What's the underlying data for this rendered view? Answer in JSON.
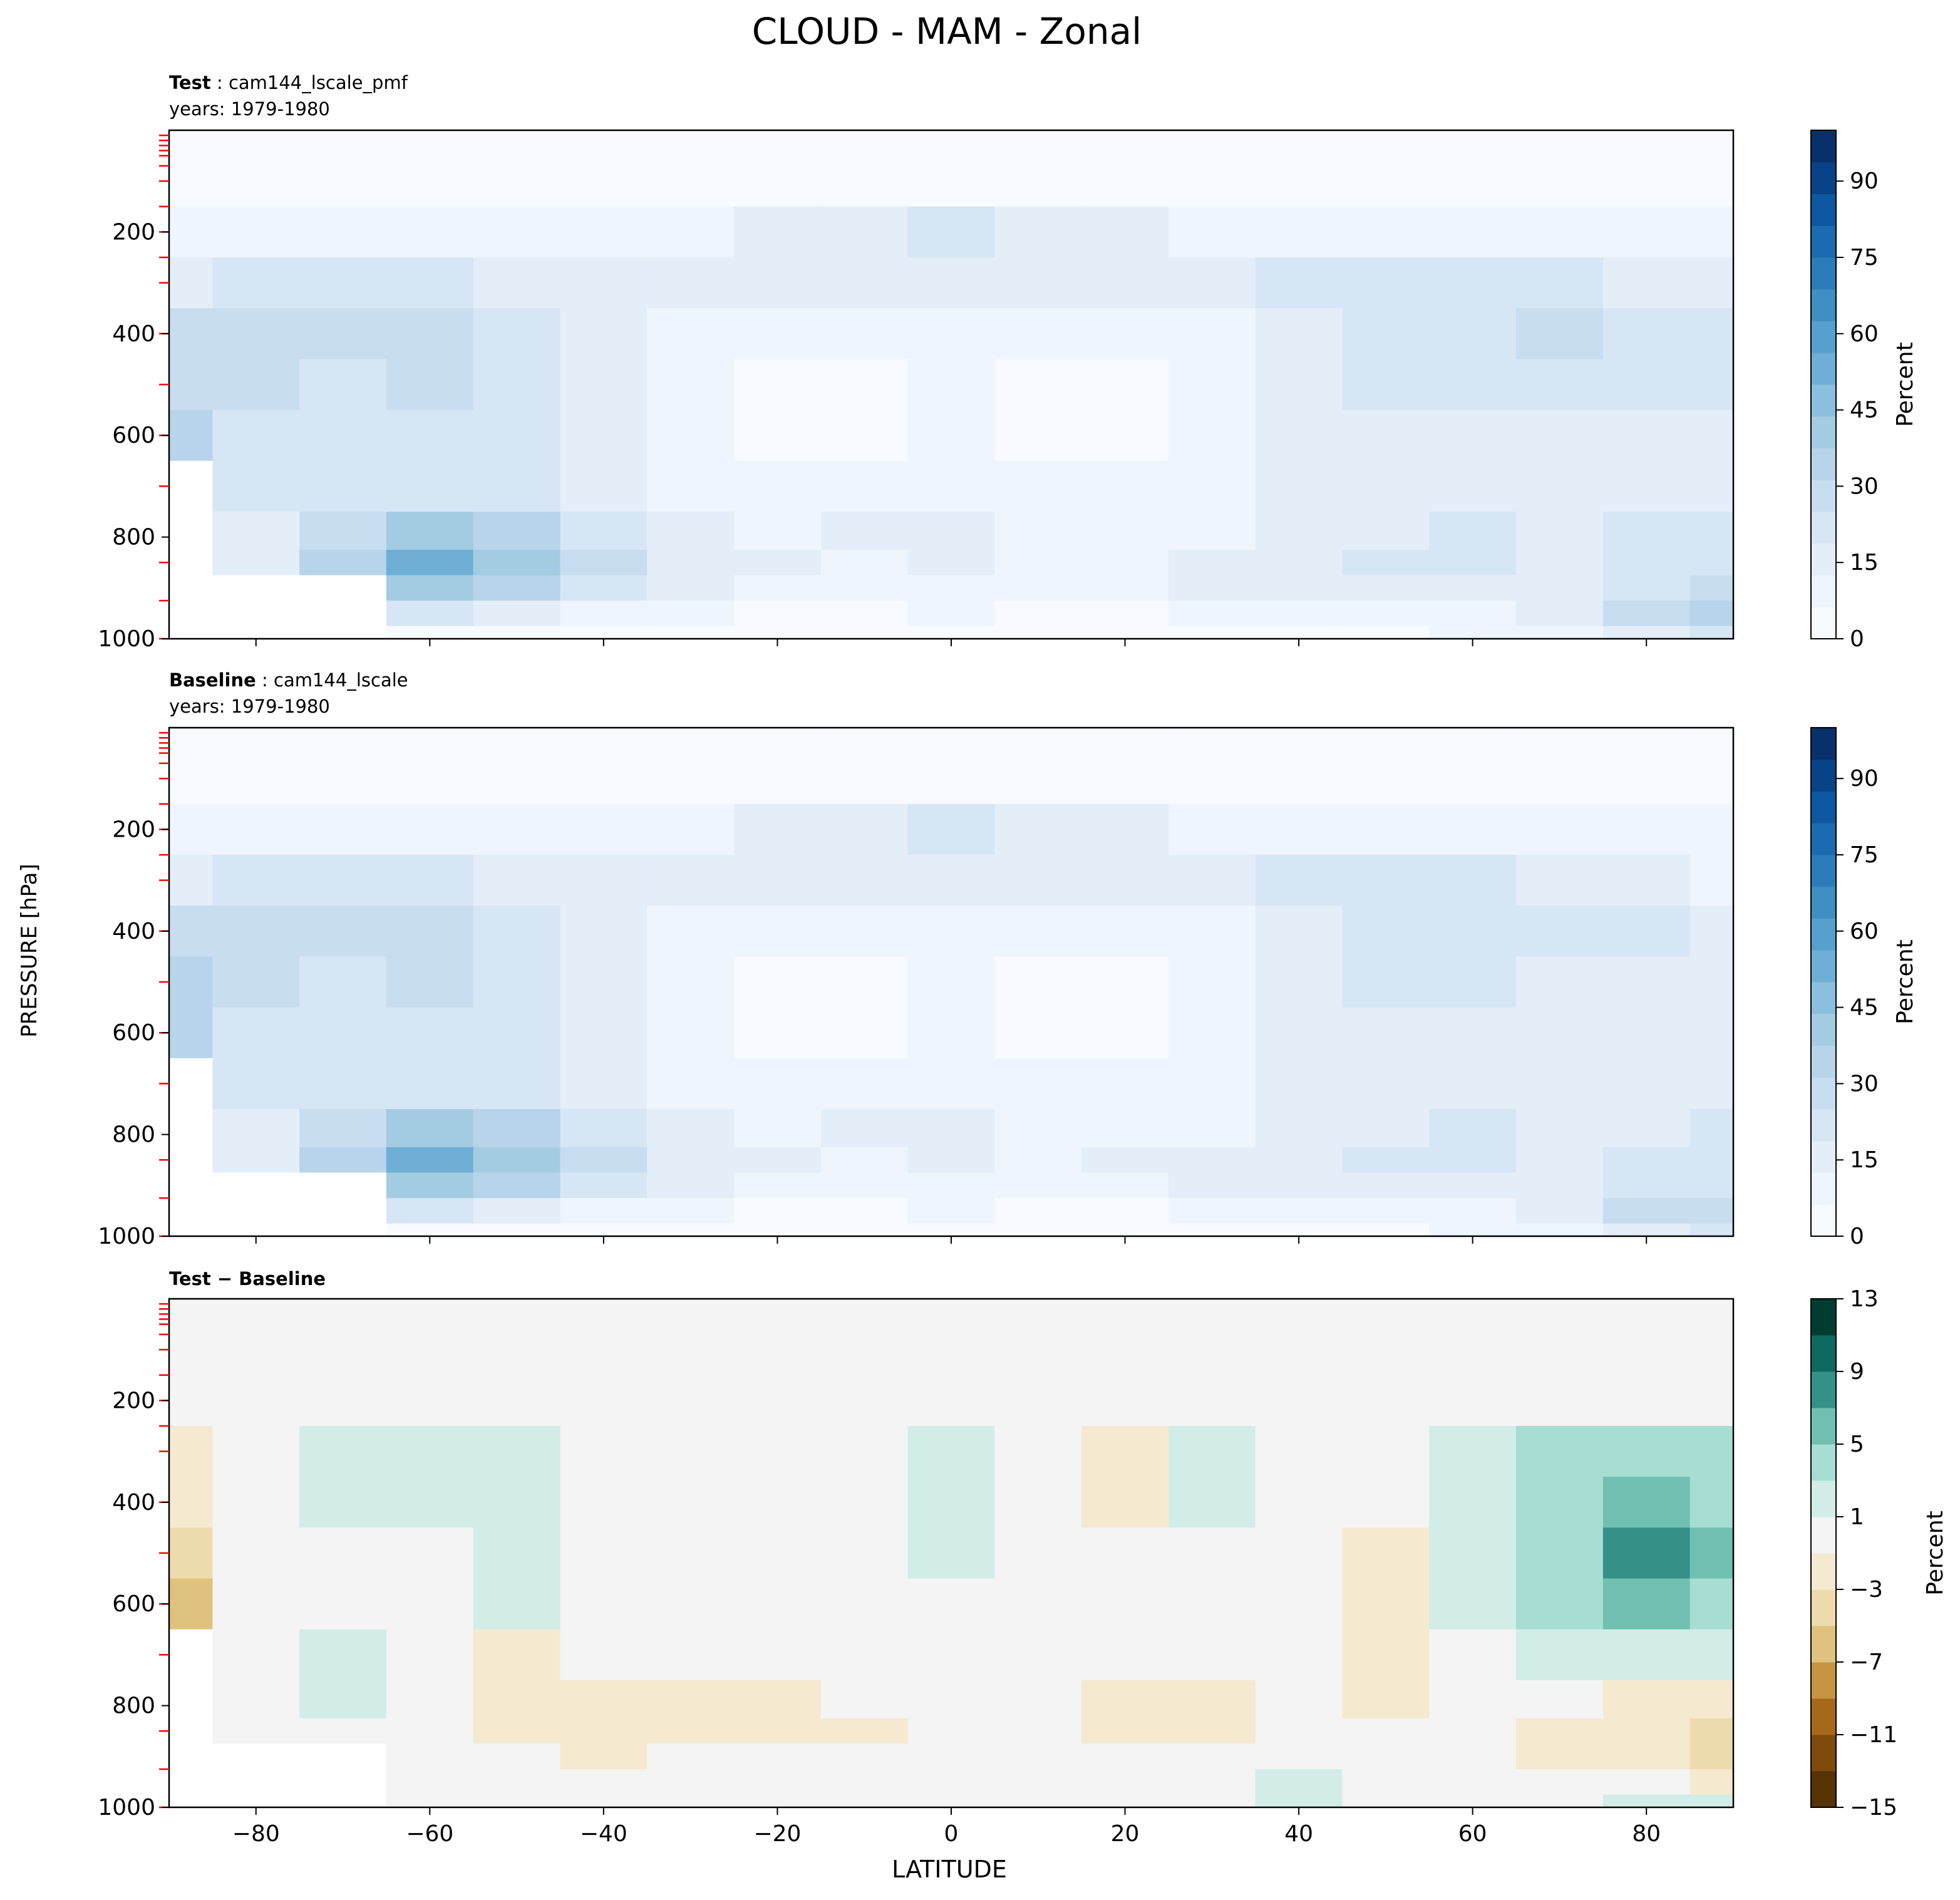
{
  "figure": {
    "title": "CLOUD - MAM - Zonal",
    "ylabel": "PRESSURE [hPa]",
    "xlabel": "LATITUDE"
  },
  "panels": [
    {
      "id": "test",
      "title_bold": "Test",
      "title_rest": " : cam144_lscale_pmf",
      "years": "years: 1979-1980",
      "colorbar_label": "Percent",
      "colorbar_ticks": [
        "0",
        "15",
        "30",
        "45",
        "60",
        "75",
        "90"
      ]
    },
    {
      "id": "baseline",
      "title_bold": "Baseline",
      "title_rest": " : cam144_lscale",
      "years": "years: 1979-1980",
      "colorbar_label": "Percent",
      "colorbar_ticks": [
        "0",
        "15",
        "30",
        "45",
        "60",
        "75",
        "90"
      ]
    },
    {
      "id": "diff",
      "title_bold": "Test − Baseline",
      "title_rest": "",
      "years": "",
      "colorbar_label": "Percent",
      "colorbar_ticks": [
        "−15",
        "−11",
        "−7",
        "−3",
        "1",
        "5",
        "9",
        "13"
      ]
    }
  ],
  "colors": {
    "blues": [
      "#f7fbff",
      "#eef5fc",
      "#e3eef9",
      "#d7e6f5",
      "#c8ddf0",
      "#b7d4ea",
      "#a3cce3",
      "#8abfdd",
      "#6fafd6",
      "#56a0ce",
      "#3f8fc5",
      "#2c7cba",
      "#1c6aaf",
      "#0d58a1",
      "#084287",
      "#08306b"
    ],
    "diff": [
      "#553305",
      "#7e4a0b",
      "#a6691c",
      "#c69544",
      "#dfc27d",
      "#eedbad",
      "#f5ead0",
      "#f4f4f4",
      "#d2ede8",
      "#a7ddd3",
      "#6fc0b1",
      "#359188",
      "#0e6a60",
      "#003c30"
    ],
    "missing": "#ffffff",
    "level_tick": "#ff0000"
  },
  "chart_data": [
    {
      "type": "heatmap",
      "title": "Test : cam144_lscale_pmf",
      "subtitle": "years: 1979-1980",
      "xlabel": "LATITUDE",
      "ylabel": "PRESSURE [hPa]",
      "x": [
        -90,
        -80,
        -70,
        -60,
        -50,
        -40,
        -30,
        -20,
        -10,
        0,
        10,
        20,
        30,
        40,
        50,
        60,
        70,
        80,
        90
      ],
      "y": [
        10,
        100,
        200,
        300,
        400,
        500,
        600,
        700,
        800,
        850,
        900,
        950,
        1000
      ],
      "xlim": [
        -90,
        90
      ],
      "ylim": [
        1000,
        0
      ],
      "xticks": [
        -80,
        -60,
        -40,
        -20,
        0,
        20,
        40,
        60,
        80
      ],
      "yticks": [
        200,
        400,
        600,
        800,
        1000
      ],
      "colorbar": {
        "label": "Percent",
        "range": [
          0,
          100
        ],
        "ticks": [
          0,
          15,
          30,
          45,
          60,
          75,
          90
        ]
      },
      "values": [
        [
          1,
          1,
          1,
          1,
          1,
          1,
          1,
          1,
          1,
          1,
          1,
          1,
          1,
          1,
          1,
          1,
          1,
          1,
          1
        ],
        [
          3,
          3,
          3,
          3,
          3,
          3,
          4,
          5,
          6,
          6,
          6,
          5,
          4,
          3,
          3,
          3,
          3,
          3,
          3
        ],
        [
          8,
          10,
          10,
          9,
          9,
          10,
          12,
          15,
          18,
          20,
          18,
          15,
          12,
          10,
          9,
          9,
          9,
          8,
          7
        ],
        [
          18,
          20,
          22,
          22,
          18,
          15,
          13,
          14,
          16,
          18,
          16,
          15,
          18,
          22,
          24,
          23,
          20,
          16,
          14
        ],
        [
          28,
          26,
          25,
          27,
          22,
          15,
          11,
          9,
          9,
          12,
          9,
          8,
          11,
          16,
          22,
          24,
          26,
          24,
          20
        ],
        [
          30,
          26,
          24,
          26,
          22,
          14,
          9,
          5,
          5,
          10,
          5,
          4,
          9,
          14,
          19,
          22,
          22,
          22,
          20
        ],
        [
          32,
          24,
          22,
          24,
          20,
          13,
          9,
          5,
          5,
          10,
          5,
          4,
          8,
          13,
          16,
          18,
          18,
          18,
          18
        ],
        [
          null,
          20,
          22,
          24,
          20,
          14,
          10,
          9,
          11,
          12,
          9,
          9,
          10,
          13,
          16,
          18,
          16,
          18,
          18
        ],
        [
          null,
          18,
          28,
          38,
          32,
          22,
          14,
          12,
          13,
          14,
          12,
          11,
          12,
          16,
          18,
          20,
          18,
          20,
          22
        ],
        [
          null,
          16,
          34,
          52,
          40,
          26,
          16,
          13,
          12,
          14,
          12,
          12,
          14,
          17,
          19,
          21,
          18,
          22,
          24
        ],
        [
          null,
          null,
          null,
          42,
          32,
          22,
          14,
          11,
          11,
          12,
          11,
          11,
          13,
          16,
          17,
          18,
          18,
          24,
          28
        ],
        [
          null,
          null,
          null,
          20,
          14,
          10,
          7,
          6,
          6,
          7,
          6,
          6,
          8,
          10,
          11,
          12,
          14,
          28,
          34
        ],
        [
          null,
          null,
          null,
          5,
          4,
          3,
          3,
          2,
          2,
          3,
          2,
          3,
          4,
          5,
          6,
          7,
          9,
          18,
          22
        ]
      ]
    },
    {
      "type": "heatmap",
      "title": "Baseline : cam144_lscale",
      "subtitle": "years: 1979-1980",
      "xlabel": "LATITUDE",
      "ylabel": "PRESSURE [hPa]",
      "x": [
        -90,
        -80,
        -70,
        -60,
        -50,
        -40,
        -30,
        -20,
        -10,
        0,
        10,
        20,
        30,
        40,
        50,
        60,
        70,
        80,
        90
      ],
      "y": [
        10,
        100,
        200,
        300,
        400,
        500,
        600,
        700,
        800,
        850,
        900,
        950,
        1000
      ],
      "xlim": [
        -90,
        90
      ],
      "ylim": [
        1000,
        0
      ],
      "xticks": [
        -80,
        -60,
        -40,
        -20,
        0,
        20,
        40,
        60,
        80
      ],
      "yticks": [
        200,
        400,
        600,
        800,
        1000
      ],
      "colorbar": {
        "label": "Percent",
        "range": [
          0,
          100
        ],
        "ticks": [
          0,
          15,
          30,
          45,
          60,
          75,
          90
        ]
      },
      "values": [
        [
          1,
          1,
          1,
          1,
          1,
          1,
          1,
          1,
          1,
          1,
          1,
          1,
          1,
          1,
          1,
          1,
          1,
          1,
          1
        ],
        [
          3,
          3,
          3,
          3,
          3,
          3,
          4,
          5,
          6,
          6,
          6,
          5,
          4,
          3,
          3,
          3,
          3,
          3,
          3
        ],
        [
          8,
          10,
          10,
          9,
          9,
          10,
          12,
          15,
          18,
          20,
          18,
          15,
          12,
          10,
          9,
          9,
          9,
          8,
          7
        ],
        [
          18,
          20,
          22,
          21,
          17,
          15,
          13,
          14,
          16,
          17,
          16,
          15,
          18,
          22,
          24,
          22,
          18,
          14,
          12
        ],
        [
          29,
          26,
          25,
          26,
          21,
          15,
          11,
          9,
          9,
          12,
          9,
          8,
          11,
          16,
          22,
          22,
          22,
          20,
          16
        ],
        [
          32,
          26,
          24,
          26,
          21,
          14,
          9,
          5,
          5,
          10,
          5,
          4,
          9,
          14,
          19,
          20,
          18,
          16,
          14
        ],
        [
          36,
          24,
          22,
          24,
          19,
          13,
          9,
          5,
          5,
          10,
          5,
          4,
          8,
          13,
          16,
          16,
          14,
          14,
          14
        ],
        [
          null,
          20,
          22,
          24,
          20,
          14,
          10,
          9,
          11,
          12,
          9,
          9,
          10,
          13,
          16,
          17,
          14,
          16,
          16
        ],
        [
          null,
          18,
          28,
          38,
          34,
          24,
          15,
          12,
          13,
          14,
          12,
          12,
          12,
          16,
          18,
          20,
          17,
          18,
          20
        ],
        [
          null,
          16,
          34,
          52,
          42,
          28,
          17,
          13,
          12,
          14,
          12,
          13,
          14,
          17,
          19,
          21,
          17,
          20,
          20
        ],
        [
          null,
          null,
          null,
          42,
          33,
          23,
          15,
          11,
          11,
          12,
          11,
          12,
          13,
          16,
          17,
          18,
          17,
          22,
          24
        ],
        [
          null,
          null,
          null,
          20,
          14,
          10,
          7,
          6,
          6,
          7,
          6,
          6,
          8,
          10,
          11,
          12,
          13,
          26,
          30
        ],
        [
          null,
          null,
          null,
          5,
          4,
          3,
          3,
          2,
          2,
          3,
          2,
          3,
          4,
          5,
          6,
          7,
          8,
          16,
          20
        ]
      ]
    },
    {
      "type": "heatmap",
      "title": "Test − Baseline",
      "xlabel": "LATITUDE",
      "ylabel": "PRESSURE [hPa]",
      "x": [
        -90,
        -80,
        -70,
        -60,
        -50,
        -40,
        -30,
        -20,
        -10,
        0,
        10,
        20,
        30,
        40,
        50,
        60,
        70,
        80,
        90
      ],
      "y": [
        10,
        100,
        200,
        300,
        400,
        500,
        600,
        700,
        800,
        850,
        900,
        950,
        1000
      ],
      "xlim": [
        -90,
        90
      ],
      "ylim": [
        1000,
        0
      ],
      "xticks": [
        -80,
        -60,
        -40,
        -20,
        0,
        20,
        40,
        60,
        80
      ],
      "yticks": [
        200,
        400,
        600,
        800,
        1000
      ],
      "colorbar": {
        "label": "Percent",
        "range": [
          -15,
          13
        ],
        "ticks": [
          -15,
          -11,
          -7,
          -3,
          1,
          5,
          9,
          13
        ]
      },
      "values": [
        [
          0,
          0,
          0,
          0,
          0,
          0,
          0,
          0,
          0,
          0,
          0,
          0,
          0,
          0,
          0,
          0,
          0,
          0,
          0
        ],
        [
          0,
          0,
          0,
          0,
          0,
          0,
          0,
          0,
          0,
          0,
          0,
          0,
          0,
          0,
          0,
          0,
          0,
          0,
          0
        ],
        [
          -1,
          0,
          0,
          0,
          0,
          0,
          0,
          0,
          0,
          0,
          0,
          0,
          0,
          0,
          0,
          0,
          0,
          0,
          0
        ],
        [
          -3,
          0,
          1.5,
          1.5,
          1.5,
          0,
          0,
          0,
          0,
          1.5,
          0,
          -1.5,
          1.5,
          0,
          0,
          1.5,
          3,
          3,
          3
        ],
        [
          -3,
          0,
          1.5,
          1.5,
          1.5,
          0,
          0,
          0,
          0,
          1.5,
          0,
          -1.5,
          1.5,
          0,
          0,
          2,
          4,
          5,
          4
        ],
        [
          -4,
          0,
          0,
          0,
          1.5,
          0,
          0,
          0,
          0,
          1.5,
          0,
          0,
          0,
          0,
          -1.5,
          2,
          4,
          7,
          6
        ],
        [
          -6,
          0,
          0,
          0,
          1.5,
          0,
          0,
          0,
          0,
          0,
          0,
          0,
          0,
          0,
          -1.5,
          1.5,
          3,
          5,
          4
        ],
        [
          null,
          0,
          1.5,
          0,
          -1.5,
          0,
          0,
          0,
          0,
          0,
          0,
          0,
          0,
          0,
          -1.5,
          0,
          2,
          2,
          2
        ],
        [
          null,
          0,
          1.5,
          0,
          -1.5,
          -1.5,
          -1.5,
          -1.5,
          0,
          0,
          0,
          -1.5,
          -1.5,
          0,
          -1.5,
          0,
          0,
          -1.5,
          -2
        ],
        [
          null,
          0,
          0,
          0,
          -1.5,
          -3,
          -2,
          -1.5,
          -1.5,
          0,
          0,
          -1.5,
          -1.5,
          0,
          0,
          0,
          -1.5,
          -1.5,
          -4
        ],
        [
          null,
          null,
          null,
          0,
          -1,
          -1.5,
          -1,
          0,
          0,
          0,
          0,
          -1,
          0,
          0,
          0,
          0,
          -1.5,
          -2,
          -4
        ],
        [
          null,
          null,
          null,
          0,
          0,
          0,
          0,
          0,
          0,
          0,
          0,
          0,
          0,
          1.5,
          0,
          0,
          0,
          0,
          -1.5
        ],
        [
          null,
          null,
          null,
          0,
          0,
          0,
          0,
          0,
          0,
          0,
          0,
          0,
          0,
          1.5,
          0,
          0,
          0,
          2,
          1.5
        ]
      ]
    }
  ]
}
